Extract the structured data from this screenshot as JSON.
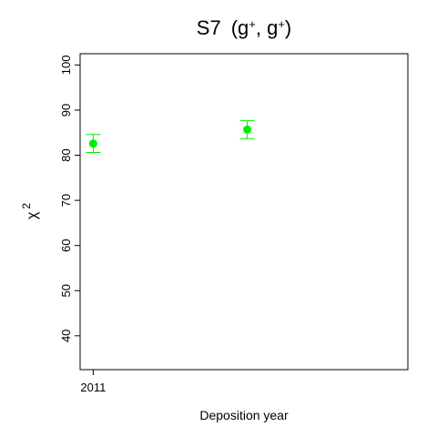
{
  "chart_data": {
    "type": "scatter",
    "title": {
      "prefix": "S7",
      "open": "(g",
      "sup1": "+",
      "mid": ", g",
      "sup2": "+",
      "close": ")"
    },
    "xlabel": "Deposition year",
    "ylabel": {
      "symbol": "χ",
      "power": "2"
    },
    "xlim": [
      0,
      1
    ],
    "ylim": [
      32.5,
      102.5
    ],
    "xticks": [
      {
        "value": 0.04,
        "label": "2011"
      }
    ],
    "yticks": [
      40,
      50,
      60,
      70,
      80,
      90,
      100
    ],
    "series": [
      {
        "name": "S7 (g+, g+)",
        "color": "#00ee00",
        "points": [
          {
            "x": 0.04,
            "y": 82.6,
            "err_low": 80.6,
            "err_high": 84.6
          },
          {
            "x": 0.51,
            "y": 85.7,
            "err_low": 83.7,
            "err_high": 87.7
          }
        ]
      }
    ],
    "grid": false
  }
}
